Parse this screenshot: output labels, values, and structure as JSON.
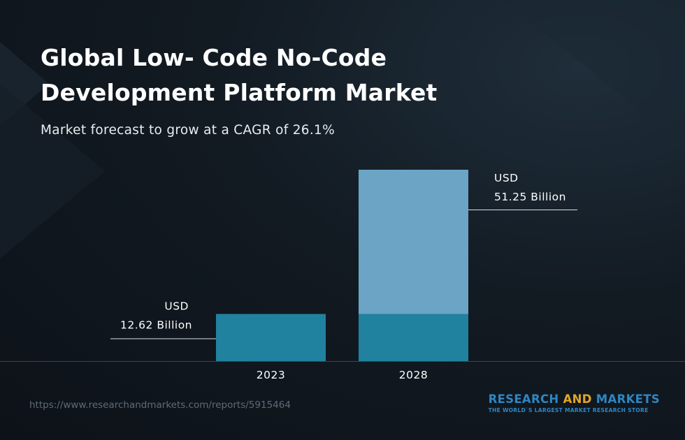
{
  "colors": {
    "bar_base": "#21829f",
    "bar_growth": "#6ca4c6",
    "baseline": "#3a4650",
    "leader_line": "#d9dee2",
    "brand_blue": "#2f86c2",
    "brand_orange": "#e0a52c"
  },
  "header": {
    "title": "Global Low- Code No-Code\nDevelopment Platform Market",
    "subtitle": "Market forecast to grow at a CAGR of 26.1%"
  },
  "chart_data": {
    "type": "bar",
    "title": "Global Low- Code No-Code Development Platform Market",
    "subtitle": "Market forecast to grow at a CAGR of 26.1%",
    "categories": [
      "2023",
      "2028"
    ],
    "values": [
      12.62,
      51.25
    ],
    "unit": "USD Billion",
    "data_labels": [
      {
        "line1": "USD",
        "line2": "12.62 Billion"
      },
      {
        "line1": "USD",
        "line2": "51.25 Billion"
      }
    ],
    "ylim": [
      0,
      51.25
    ],
    "grid": false,
    "legend": "none",
    "note": "2028 bar shows the 2023 base portion in the darker color"
  },
  "footer": {
    "url": "https://www.researchandmarkets.com/reports/5915464",
    "brand_part1": "RESEARCH ",
    "brand_part2": "AND",
    "brand_part3": " MARKETS",
    "tagline": "THE WORLD`S LARGEST MARKET RESEARCH STORE"
  }
}
